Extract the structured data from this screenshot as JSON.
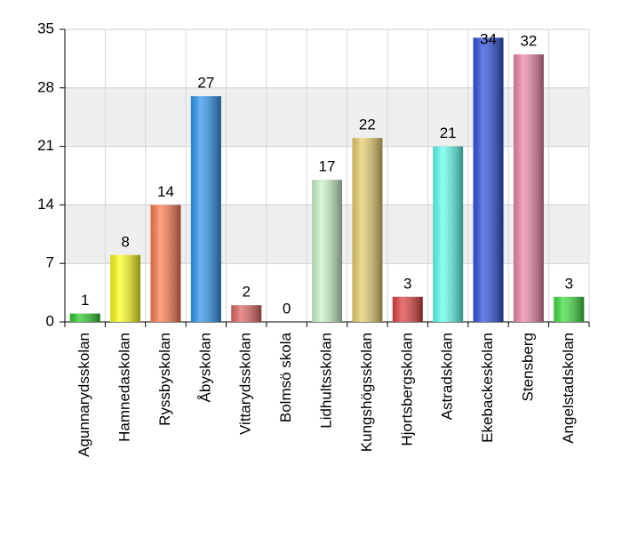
{
  "chart_data": {
    "type": "bar",
    "categories": [
      "Agunnarydsskolan",
      "Hamnedaskolan",
      "Ryssbyskolan",
      "Åbyskolan",
      "Vittarydsskolan",
      "Bolmsö skola",
      "Lidhultsskolan",
      "Kungshögsskolan",
      "Hjortsbergskolan",
      "Astradskolan",
      "Ekebackeskolan",
      "Stensberg",
      "Angelstadskolan"
    ],
    "values": [
      1,
      8,
      14,
      27,
      2,
      0,
      17,
      22,
      3,
      21,
      34,
      32,
      3
    ],
    "colors": [
      "#33cc33",
      "#ffff22",
      "#ff7f55",
      "#3399ee",
      "#e06a6a",
      "#999999",
      "#ccf5cc",
      "#e8d070",
      "#e04444",
      "#66ffee",
      "#3355dd",
      "#ee88aa",
      "#44dd44"
    ],
    "ylim": [
      0,
      35
    ],
    "yticks": [
      0,
      7,
      14,
      21,
      28,
      35
    ],
    "grid": true
  }
}
